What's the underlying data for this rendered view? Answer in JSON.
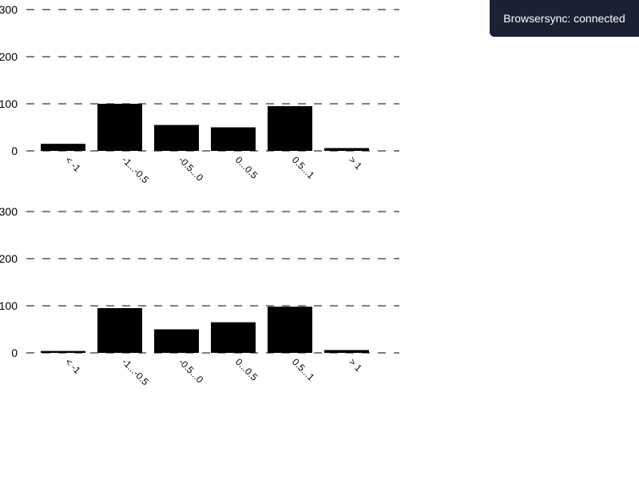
{
  "notification": {
    "text": "Browsersync: connected"
  },
  "colors": {
    "bar": "#000000",
    "grid": "#000000",
    "toast_bg": "#1c2033",
    "toast_text": "#ffffff"
  },
  "chart_data": [
    {
      "type": "bar",
      "categories": [
        "< -1",
        "-1...-0.5",
        "-0.5...0",
        "0...0.5",
        "0.5...1",
        "> 1"
      ],
      "values": [
        15,
        100,
        55,
        50,
        95,
        6
      ],
      "yticks": [
        "300",
        "200",
        "100",
        "0"
      ],
      "ylim": [
        0,
        300
      ],
      "grid": true
    },
    {
      "type": "bar",
      "categories": [
        "< -1",
        "-1...-0.5",
        "-0.5...0",
        "0...0.5",
        "0.5...1",
        "> 1"
      ],
      "values": [
        4,
        95,
        50,
        65,
        98,
        6
      ],
      "yticks": [
        "300",
        "200",
        "100",
        "0"
      ],
      "ylim": [
        0,
        300
      ],
      "grid": true
    }
  ]
}
